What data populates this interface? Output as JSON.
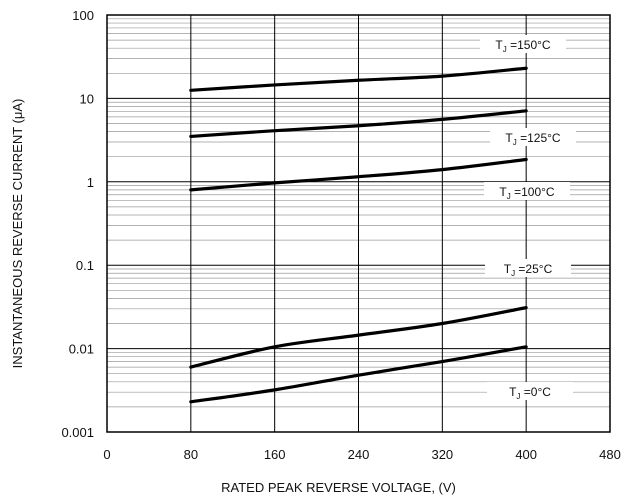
{
  "chart_data": {
    "type": "line",
    "xlabel": "RATED PEAK REVERSE VOLTAGE, (V)",
    "ylabel": "INSTANTANEOUS REVERSE CURRENT (μA)",
    "xlim": [
      0,
      480
    ],
    "ylim": [
      0.001,
      100
    ],
    "yscale": "log",
    "grid": true,
    "xticks": [
      0,
      80,
      160,
      240,
      320,
      400,
      480
    ],
    "xtick_labels": [
      "0",
      "80",
      "160",
      "240",
      "320",
      "400",
      "480"
    ],
    "yticks": [
      0.001,
      0.01,
      0.1,
      1,
      10,
      100
    ],
    "ytick_labels": [
      "0.001",
      "0.01",
      "0.1",
      "1",
      "10",
      "100"
    ],
    "series": [
      {
        "name": "TJ =150°C",
        "label_prefix": "T",
        "label_sub": "J",
        "label_suffix": " =150°C",
        "x": [
          80,
          160,
          240,
          320,
          400
        ],
        "y": [
          12.5,
          14.5,
          16.5,
          18.5,
          23
        ]
      },
      {
        "name": "TJ =125°C",
        "label_prefix": "T",
        "label_sub": "J",
        "label_suffix": " =125°C",
        "x": [
          80,
          160,
          240,
          320,
          400
        ],
        "y": [
          3.5,
          4.1,
          4.7,
          5.6,
          7.1
        ]
      },
      {
        "name": "TJ =100°C",
        "label_prefix": "T",
        "label_sub": "J",
        "label_suffix": " =100°C",
        "x": [
          80,
          160,
          240,
          320,
          400
        ],
        "y": [
          0.8,
          0.97,
          1.15,
          1.4,
          1.85
        ]
      },
      {
        "name": "TJ =25°C",
        "label_prefix": "T",
        "label_sub": "J",
        "label_suffix": " =25°C",
        "x": [
          80,
          160,
          240,
          320,
          400
        ],
        "y": [
          0.006,
          0.0105,
          0.0145,
          0.02,
          0.031
        ]
      },
      {
        "name": "TJ =0°C",
        "label_prefix": "T",
        "label_sub": "J",
        "label_suffix": " =0°C",
        "x": [
          80,
          160,
          240,
          320,
          400
        ],
        "y": [
          0.0023,
          0.0032,
          0.0048,
          0.007,
          0.0105
        ]
      }
    ],
    "annotation_order": [
      "TJ =150°C",
      "TJ =125°C",
      "TJ =100°C",
      "TJ =25°C",
      "TJ =0°C"
    ]
  }
}
